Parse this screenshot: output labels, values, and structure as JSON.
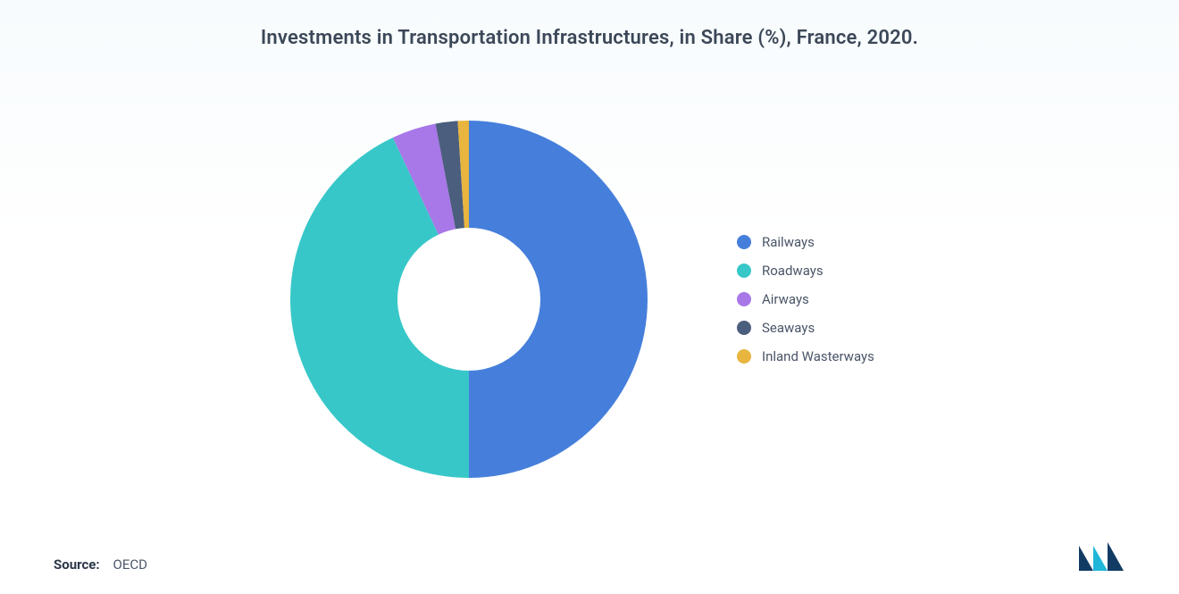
{
  "title": "Investments in Transportation Infrastructures, in Share (%), France, 2020.",
  "chart": {
    "type": "donut",
    "background_color": "#ffffff",
    "gradient_top": "#f7fbfd",
    "donut_outer_radius": 200,
    "donut_inner_radius_ratio": 0.4,
    "start_angle_deg": -90,
    "series": [
      {
        "label": "Railways",
        "value": 50,
        "color": "#467fdb"
      },
      {
        "label": "Roadways",
        "value": 43,
        "color": "#38c7c9"
      },
      {
        "label": "Airways",
        "value": 4,
        "color": "#a877e8"
      },
      {
        "label": "Seaways",
        "value": 2,
        "color": "#4b5e7e"
      },
      {
        "label": "Inland Wasterways",
        "value": 1,
        "color": "#e8b53e"
      }
    ]
  },
  "legend_font_size": 15,
  "title_font_size": 22,
  "title_color": "#3c4858",
  "legend_text_color": "#4a5568",
  "source_label": "Source:",
  "source_value": "OECD",
  "logo_colors": {
    "dark": "#123b63",
    "light": "#1fb6d9"
  }
}
